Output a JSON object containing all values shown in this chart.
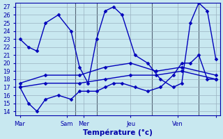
{
  "xlabel": "Température (°c)",
  "background_color": "#c8e8f0",
  "grid_color": "#9ab0c0",
  "line_color": "#0000bb",
  "xlim": [
    0,
    24
  ],
  "ylim": [
    13.5,
    27.5
  ],
  "yticks": [
    14,
    15,
    16,
    17,
    18,
    19,
    20,
    21,
    22,
    23,
    24,
    25,
    26,
    27
  ],
  "xtick_positions": [
    0.5,
    6,
    8,
    13.5,
    19,
    23.5
  ],
  "xtick_labels": [
    "Mar",
    "Sam",
    "Mer",
    "Jeu",
    "Ven",
    ""
  ],
  "vline_positions": [
    0,
    7,
    9.5,
    16,
    21.5,
    24
  ],
  "series": [
    {
      "x": [
        0.5,
        1.5,
        2.5,
        3.5,
        5.0,
        6.5,
        7.5,
        8.5,
        9.5,
        10.5,
        11.5,
        12.5,
        14.0,
        15.5,
        17.0,
        18.5,
        19.5,
        20.5,
        21.5,
        22.5,
        23.5
      ],
      "y": [
        23,
        22,
        21.5,
        25,
        26,
        24,
        19.5,
        17.5,
        23,
        26.5,
        27,
        26,
        21,
        20,
        18,
        17,
        17.5,
        25,
        27.5,
        26.5,
        20.5
      ]
    },
    {
      "x": [
        0.5,
        1.5,
        2.5,
        3.5,
        5.0,
        6.5,
        7.5,
        8.5,
        9.5,
        10.5,
        11.5,
        12.5,
        14.0,
        15.5,
        17.0,
        18.5,
        19.5,
        20.5,
        21.5,
        22.5,
        23.5
      ],
      "y": [
        17,
        15,
        14,
        15.5,
        16,
        15.5,
        16.5,
        16.5,
        16.5,
        17,
        17.5,
        17.5,
        17,
        16.5,
        17,
        18.5,
        20,
        20,
        21,
        18,
        18
      ]
    },
    {
      "x": [
        0.5,
        3.5,
        7.5,
        10.5,
        13.5,
        16.5,
        19.5,
        23.5
      ],
      "y": [
        17,
        17.5,
        17.5,
        18,
        18.5,
        18.5,
        19,
        18
      ]
    },
    {
      "x": [
        0.5,
        3.5,
        7.5,
        10.5,
        13.5,
        16.5,
        19.5,
        23.5
      ],
      "y": [
        17.5,
        18.5,
        18.5,
        19.5,
        20,
        19,
        19.5,
        18.5
      ]
    }
  ],
  "marker": "D",
  "markersize": 2.5,
  "linewidth": 1.0
}
